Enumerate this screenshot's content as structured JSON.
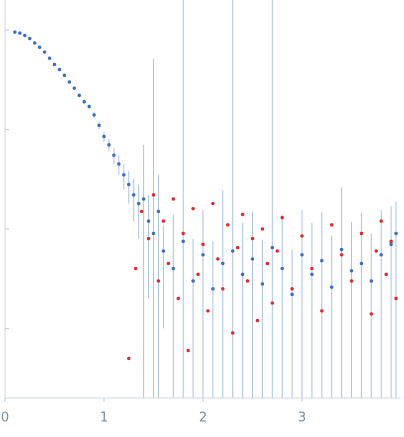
{
  "chart_data": {
    "type": "scatter",
    "log_y": true,
    "xlim": [
      0,
      4.0
    ],
    "xticks": [
      0,
      1,
      2,
      3
    ],
    "ylim": [
      0.0002,
      2
    ],
    "yticks": [
      1,
      0.1,
      0.01,
      0.001
    ],
    "series": [
      {
        "color": "#3a6bc4",
        "error_color": "#a9c3e6",
        "x": [
          0.1,
          0.15,
          0.2,
          0.25,
          0.3,
          0.35,
          0.4,
          0.45,
          0.5,
          0.55,
          0.6,
          0.65,
          0.7,
          0.75,
          0.8,
          0.85,
          0.9,
          0.95,
          1.0,
          1.05,
          1.1,
          1.15,
          1.2,
          1.25,
          1.3,
          1.35,
          1.4,
          1.45,
          1.5,
          1.55,
          1.6,
          1.7,
          1.8,
          1.9,
          2.0,
          2.1,
          2.2,
          2.3,
          2.4,
          2.5,
          2.6,
          2.7,
          2.8,
          2.9,
          3.0,
          3.1,
          3.2,
          3.3,
          3.4,
          3.5,
          3.6,
          3.7,
          3.8,
          3.9,
          3.95
        ],
        "values": [
          0.95,
          0.93,
          0.88,
          0.82,
          0.74,
          0.67,
          0.6,
          0.52,
          0.45,
          0.4,
          0.35,
          0.3,
          0.26,
          0.22,
          0.19,
          0.17,
          0.14,
          0.11,
          0.085,
          0.07,
          0.055,
          0.045,
          0.035,
          0.028,
          0.022,
          0.018,
          0.02,
          0.012,
          0.009,
          0.015,
          0.006,
          0.004,
          0.0075,
          0.003,
          0.0055,
          0.0025,
          0.0045,
          0.006,
          0.0035,
          0.005,
          0.0028,
          0.0065,
          0.004,
          0.0022,
          0.0055,
          0.0035,
          0.0048,
          0.0026,
          0.0062,
          0.0038,
          0.0045,
          0.003,
          0.0055,
          0.007,
          0.009
        ],
        "errors": [
          0.01,
          0.01,
          0.01,
          0.01,
          0.01,
          0.01,
          0.01,
          0.01,
          0.01,
          0.01,
          0.01,
          0.01,
          0.01,
          0.01,
          0.01,
          0.01,
          0.01,
          0.01,
          0.01,
          0.01,
          0.01,
          0.01,
          0.01,
          0.01,
          0.01,
          0.01,
          0.05,
          0.01,
          0.5,
          0.02,
          0.005,
          0.01,
          2,
          0.005,
          0.01,
          0.005,
          0.02,
          2,
          0.008,
          0.01,
          0.005,
          2,
          0.01,
          0.004,
          0.01,
          0.008,
          0.01,
          0.006,
          0.02,
          0.008,
          0.01,
          0.006,
          0.01,
          0.01,
          0.01
        ]
      },
      {
        "color": "#e0272b",
        "x": [
          1.25,
          1.32,
          1.38,
          1.45,
          1.5,
          1.55,
          1.6,
          1.65,
          1.7,
          1.75,
          1.8,
          1.85,
          1.9,
          1.95,
          2.0,
          2.05,
          2.1,
          2.15,
          2.2,
          2.25,
          2.3,
          2.35,
          2.4,
          2.45,
          2.5,
          2.55,
          2.6,
          2.65,
          2.7,
          2.75,
          2.8,
          2.9,
          3.0,
          3.1,
          3.2,
          3.3,
          3.4,
          3.5,
          3.6,
          3.7,
          3.75,
          3.8,
          3.85,
          3.9,
          3.95
        ],
        "values": [
          0.0005,
          0.004,
          0.015,
          0.008,
          0.022,
          0.003,
          0.012,
          0.0045,
          0.02,
          0.002,
          0.009,
          0.0006,
          0.016,
          0.0035,
          0.007,
          0.0015,
          0.018,
          0.005,
          0.0025,
          0.011,
          0.0009,
          0.0065,
          0.014,
          0.003,
          0.008,
          0.0012,
          0.01,
          0.0045,
          0.0018,
          0.006,
          0.013,
          0.0025,
          0.0085,
          0.004,
          0.0015,
          0.011,
          0.0055,
          0.003,
          0.009,
          0.0014,
          0.006,
          0.012,
          0.0035,
          0.0075,
          0.002
        ]
      }
    ]
  }
}
